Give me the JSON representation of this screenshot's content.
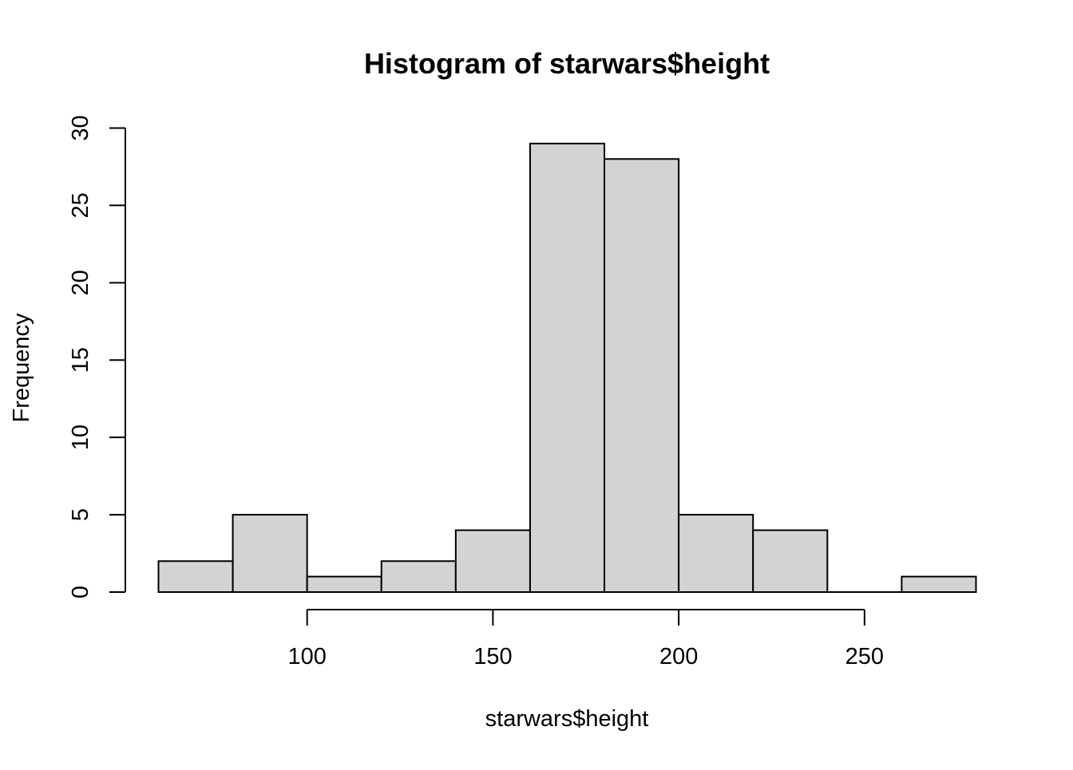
{
  "chart_data": {
    "type": "bar",
    "title": "Histogram of starwars$height",
    "xlabel": "starwars$height",
    "ylabel": "Frequency",
    "bin_width": 20,
    "bins": [
      {
        "start": 60,
        "end": 80,
        "count": 2
      },
      {
        "start": 80,
        "end": 100,
        "count": 5
      },
      {
        "start": 100,
        "end": 120,
        "count": 1
      },
      {
        "start": 120,
        "end": 140,
        "count": 2
      },
      {
        "start": 140,
        "end": 160,
        "count": 4
      },
      {
        "start": 160,
        "end": 180,
        "count": 29
      },
      {
        "start": 180,
        "end": 200,
        "count": 28
      },
      {
        "start": 200,
        "end": 220,
        "count": 5
      },
      {
        "start": 220,
        "end": 240,
        "count": 4
      },
      {
        "start": 240,
        "end": 260,
        "count": 0
      },
      {
        "start": 260,
        "end": 280,
        "count": 1
      }
    ],
    "x_ticks": [
      100,
      150,
      200,
      250
    ],
    "y_ticks": [
      0,
      5,
      10,
      15,
      20,
      25,
      30
    ],
    "xlim": [
      60,
      280
    ],
    "ylim": [
      0,
      30
    ],
    "grid": false,
    "bar_fill": "#d3d3d3",
    "bar_stroke": "#000000"
  }
}
